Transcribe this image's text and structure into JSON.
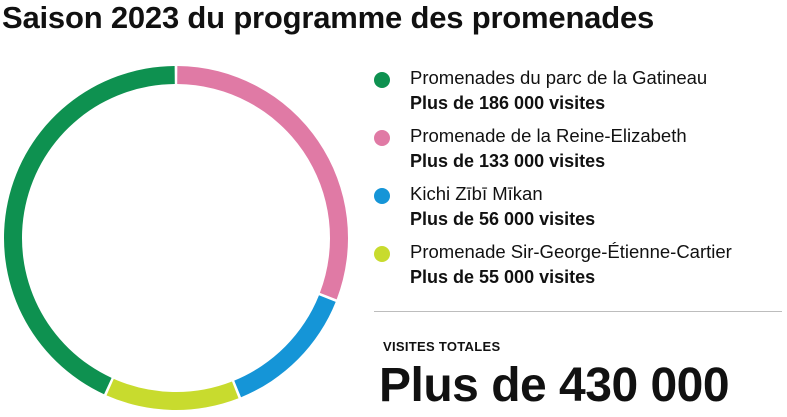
{
  "title": "Saison 2023 du programme des promenades",
  "chart_data": {
    "type": "pie",
    "style": "donut",
    "title": "Saison 2023 du programme des promenades",
    "slices": [
      {
        "name": "Promenades du parc de la Gatineau",
        "label": "Plus de 186 000 visites",
        "value": 186000,
        "color": "#0e9150"
      },
      {
        "name": "Promenade de la Reine-Elizabeth",
        "label": "Plus de 133 000 visites",
        "value": 133000,
        "color": "#e07aa5"
      },
      {
        "name": "Kichi Zībī Mīkan",
        "label": "Plus de 56 000 visites",
        "value": 56000,
        "color": "#1595d7"
      },
      {
        "name": "Promenade Sir-George-Étienne-Cartier",
        "label": "Plus de 55 000 visites",
        "value": 55000,
        "color": "#c8db2e"
      }
    ],
    "legend_position": "right"
  },
  "total": {
    "label": "VISITES TOTALES",
    "value": "Plus de 430 000"
  }
}
